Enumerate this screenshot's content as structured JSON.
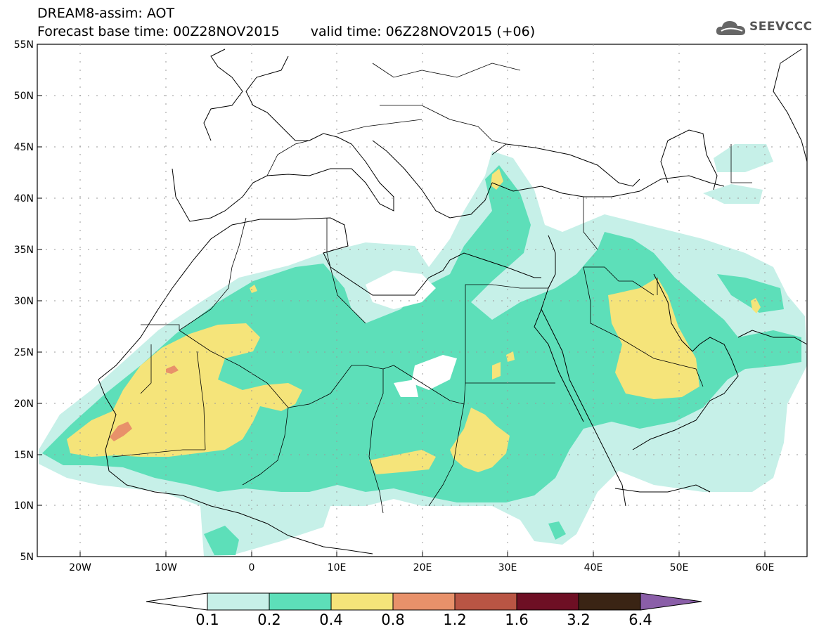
{
  "header": {
    "line1": "DREAM8-assim: AOT",
    "base_time": "Forecast base time: 00Z28NOV2015",
    "valid_time": "valid time: 06Z28NOV2015 (+06)"
  },
  "logo": {
    "text": "SEEVCCC",
    "icon": "cloud-icon"
  },
  "axes": {
    "lat_labels": [
      "55N",
      "50N",
      "45N",
      "40N",
      "35N",
      "30N",
      "25N",
      "20N",
      "15N",
      "10N",
      "5N"
    ],
    "lon_labels": [
      "20W",
      "10W",
      "0",
      "10E",
      "20E",
      "30E",
      "40E",
      "50E",
      "60E"
    ]
  },
  "colorbar": {
    "labels": [
      "0.1",
      "0.2",
      "0.4",
      "0.8",
      "1.2",
      "1.6",
      "3.2",
      "6.4"
    ],
    "colors": [
      "#c6f0e8",
      "#5ddfb9",
      "#f5e47a",
      "#e8916a",
      "#b95544",
      "#6e0f24",
      "#3a2414",
      "#8a5ea8"
    ]
  }
}
